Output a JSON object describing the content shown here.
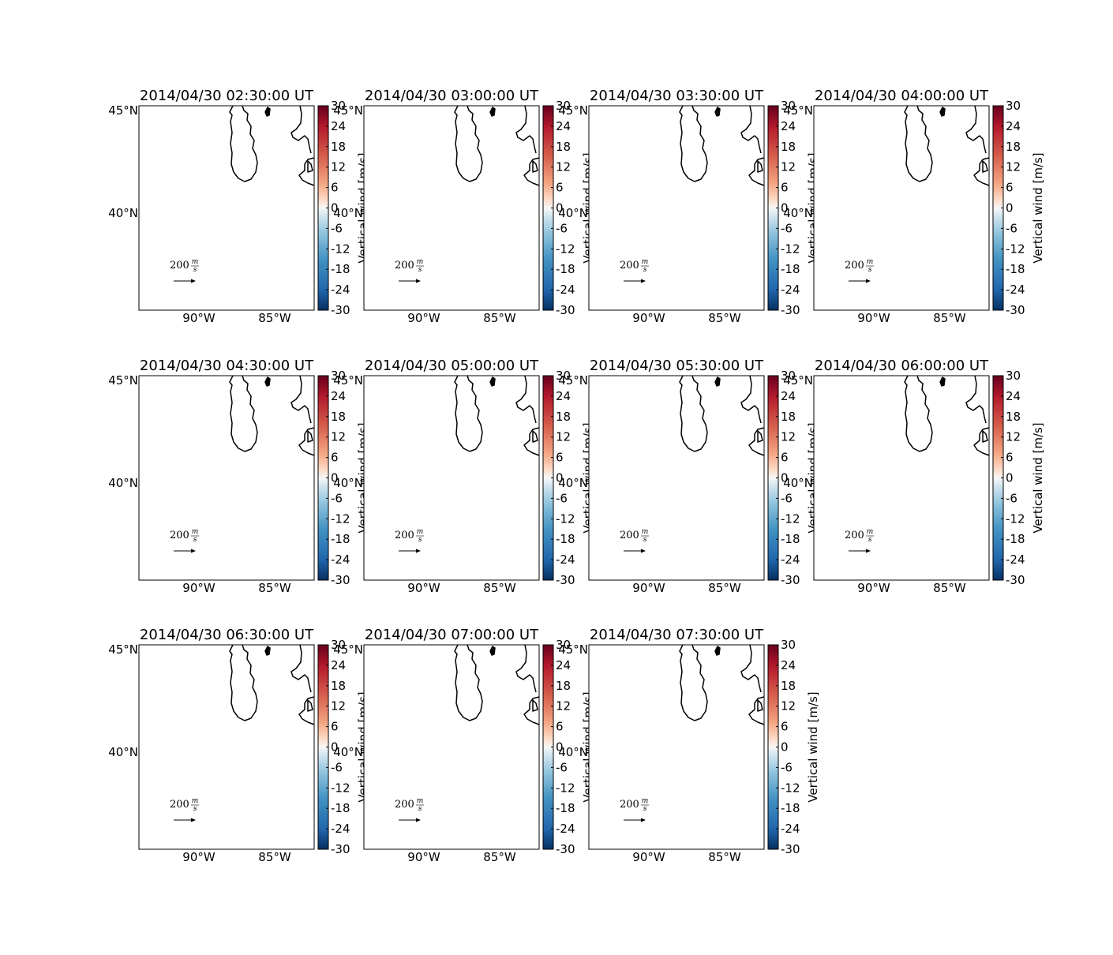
{
  "panels": [
    {
      "title": "2014/04/30 02:30:00 UT"
    },
    {
      "title": "2014/04/30 03:00:00 UT"
    },
    {
      "title": "2014/04/30 03:30:00 UT"
    },
    {
      "title": "2014/04/30 04:00:00 UT"
    },
    {
      "title": "2014/04/30 04:30:00 UT"
    },
    {
      "title": "2014/04/30 05:00:00 UT"
    },
    {
      "title": "2014/04/30 05:30:00 UT"
    },
    {
      "title": "2014/04/30 06:00:00 UT"
    },
    {
      "title": "2014/04/30 06:30:00 UT"
    },
    {
      "title": "2014/04/30 07:00:00 UT"
    },
    {
      "title": "2014/04/30 07:30:00 UT"
    }
  ],
  "lat_ticks": [
    "45°N",
    "40°N"
  ],
  "lon_ticks": [
    "90°W",
    "85°W"
  ],
  "colorbar": {
    "ticks": [
      30,
      24,
      18,
      12,
      6,
      0,
      -6,
      -12,
      -18,
      -24,
      -30
    ],
    "label": "Vertical wind [m/s]"
  },
  "quiver_key": {
    "value": 200,
    "unit_numerator": "m",
    "unit_denominator": "s"
  }
}
